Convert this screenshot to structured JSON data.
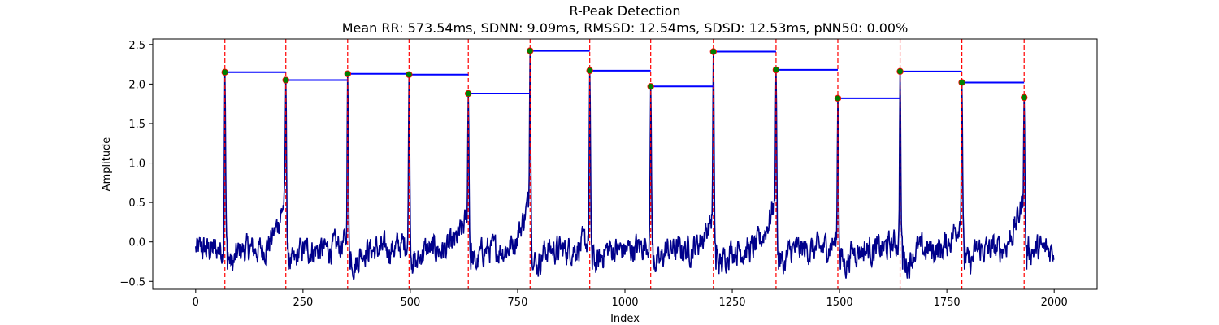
{
  "chart_data": {
    "type": "line",
    "title": "R-Peak Detection",
    "subtitle": "Mean RR: 573.54ms, SDNN: 9.09ms, RMSSD: 12.54ms, SDSD: 12.53ms, pNN50: 0.00%",
    "xlabel": "Index",
    "ylabel": "Amplitude",
    "xlim": [
      -100,
      2100
    ],
    "ylim": [
      -0.6,
      2.57
    ],
    "xticks": [
      0,
      250,
      500,
      750,
      1000,
      1250,
      1500,
      1750,
      2000
    ],
    "yticks": [
      -0.5,
      0.0,
      0.5,
      1.0,
      1.5,
      2.0,
      2.5
    ],
    "xtick_labels": [
      "0",
      "250",
      "500",
      "750",
      "1000",
      "1250",
      "1500",
      "1750",
      "2000"
    ],
    "ytick_labels": [
      "−0.5",
      "0.0",
      "0.5",
      "1.0",
      "1.5",
      "2.0",
      "2.5"
    ],
    "grid": false,
    "signal_length": 2000,
    "peaks": [
      {
        "x": 68,
        "y": 2.15
      },
      {
        "x": 210,
        "y": 2.05
      },
      {
        "x": 354,
        "y": 2.13
      },
      {
        "x": 497,
        "y": 2.12
      },
      {
        "x": 635,
        "y": 1.88
      },
      {
        "x": 779,
        "y": 2.42
      },
      {
        "x": 918,
        "y": 2.17
      },
      {
        "x": 1060,
        "y": 1.97
      },
      {
        "x": 1206,
        "y": 2.41
      },
      {
        "x": 1352,
        "y": 2.18
      },
      {
        "x": 1496,
        "y": 1.82
      },
      {
        "x": 1641,
        "y": 2.16
      },
      {
        "x": 1785,
        "y": 2.02
      },
      {
        "x": 1930,
        "y": 1.83
      }
    ],
    "colors": {
      "signal": "#00008b",
      "peak_marker": "#008000",
      "peak_marker_edge": "#ff0000",
      "peak_line": "#ff0000",
      "rr_interval": "#0000ff"
    }
  }
}
